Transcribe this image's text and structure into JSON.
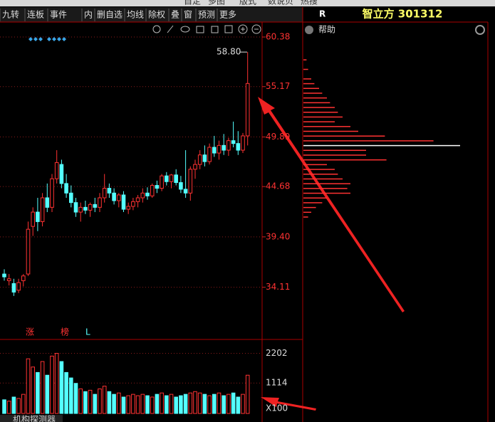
{
  "menu": [
    "自定",
    "多图",
    "版式",
    "数说贝",
    "热搜"
  ],
  "toolbar": [
    "九转",
    "连板",
    "事件",
    "内",
    "删自选",
    "均线",
    "除权",
    "叠",
    "窗",
    "预测",
    "更多"
  ],
  "panel": {
    "badge": "R",
    "title": "智立方 301312",
    "help": "帮助"
  },
  "tab": "机构探测器",
  "chart_data": {
    "type": "candlestick",
    "candles": [
      [
        35.5,
        36,
        34.8,
        35.2
      ],
      [
        34.8,
        35.5,
        34.3,
        35.0
      ],
      [
        34.5,
        35,
        33.2,
        33.6
      ],
      [
        33.8,
        35,
        33.5,
        34.6
      ],
      [
        34.8,
        35.5,
        34.2,
        35.3
      ],
      [
        35.5,
        41,
        35.3,
        40.2
      ],
      [
        40.5,
        42.5,
        39.5,
        42
      ],
      [
        42,
        43.5,
        40,
        41
      ],
      [
        41,
        44,
        40.5,
        43.5
      ],
      [
        43.5,
        45,
        42,
        42.5
      ],
      [
        42.5,
        46,
        42,
        45.5
      ],
      [
        45.5,
        48.5,
        45,
        47.2
      ],
      [
        47,
        47.5,
        44.5,
        45
      ],
      [
        45,
        46,
        43.5,
        44
      ],
      [
        44,
        44.8,
        42.5,
        43
      ],
      [
        43,
        43.5,
        41.5,
        42
      ],
      [
        42,
        43,
        41,
        42.5
      ],
      [
        42.5,
        43.2,
        41.8,
        42.2
      ],
      [
        42.2,
        43,
        41.5,
        42.8
      ],
      [
        42.8,
        43.5,
        42,
        42.5
      ],
      [
        42.5,
        44,
        42,
        43.5
      ],
      [
        43.5,
        46,
        43,
        44.5
      ],
      [
        44.5,
        45,
        43.5,
        44
      ],
      [
        44,
        44.5,
        42.8,
        43.2
      ],
      [
        43.2,
        44,
        42.5,
        43.8
      ],
      [
        43.8,
        44.2,
        42,
        42.3
      ],
      [
        42.3,
        43,
        41.8,
        42.6
      ],
      [
        42.6,
        43.5,
        42.2,
        43.1
      ],
      [
        43.1,
        43.8,
        42.5,
        43.5
      ],
      [
        43.5,
        44.5,
        43,
        44
      ],
      [
        44,
        44.6,
        43.3,
        43.7
      ],
      [
        43.7,
        45,
        43.5,
        44.8
      ],
      [
        44.8,
        45.3,
        44,
        44.5
      ],
      [
        44.5,
        46,
        44.2,
        45.8
      ],
      [
        45.8,
        46.2,
        44.8,
        45.2
      ],
      [
        45.2,
        46,
        44.5,
        45.9
      ],
      [
        45.9,
        46.5,
        44.8,
        45.1
      ],
      [
        45.1,
        45.8,
        44,
        44.4
      ],
      [
        44.4,
        48.5,
        43.5,
        44
      ],
      [
        44,
        46.8,
        43.2,
        46.5
      ],
      [
        46.5,
        47.5,
        45.5,
        47
      ],
      [
        47,
        48.5,
        46.5,
        48
      ],
      [
        48,
        49,
        46.8,
        47.3
      ],
      [
        47.3,
        49.2,
        47,
        48.8
      ],
      [
        48.8,
        50,
        47.8,
        48.2
      ],
      [
        48.2,
        49.5,
        47.5,
        49
      ],
      [
        49,
        50.2,
        48,
        48.5
      ],
      [
        48.5,
        49.8,
        47.9,
        49.5
      ],
      [
        49.5,
        51.5,
        48.8,
        49.2
      ],
      [
        49.2,
        50.5,
        48,
        48.5
      ],
      [
        48.5,
        50.3,
        48.2,
        50
      ],
      [
        50,
        58.8,
        49,
        55.5
      ]
    ],
    "ylim": [
      30.5,
      61.5
    ],
    "yticks": [
      60.38,
      55.17,
      49.89,
      44.68,
      {
        "value": 39.4,
        "label": "39.40"
      },
      34.11
    ],
    "annotation": "58.80",
    "markers": [
      "涨",
      "榜",
      "L"
    ],
    "up_color": "#ff3232",
    "down_color": "#54ffff",
    "volume": {
      "values": [
        500,
        450,
        600,
        550,
        700,
        2000,
        1700,
        1500,
        1900,
        1400,
        2100,
        2200,
        1900,
        1500,
        1300,
        1100,
        900,
        800,
        850,
        700,
        900,
        1000,
        800,
        700,
        750,
        600,
        650,
        700,
        650,
        700,
        650,
        600,
        700,
        750,
        650,
        700,
        600,
        650,
        700,
        750,
        800,
        750,
        700,
        650,
        700,
        750,
        650,
        700,
        750,
        600,
        700,
        1400
      ],
      "ylim": [
        0,
        2500
      ],
      "yticks": [
        2202,
        1114
      ],
      "unit": "X100"
    },
    "chips": {
      "prices": [
        58,
        57,
        56,
        55.5,
        55,
        54.5,
        54,
        53.5,
        53,
        52.5,
        52,
        51.5,
        51,
        50.5,
        50,
        49.5,
        49,
        48.5,
        48,
        47.5,
        47,
        46.5,
        46,
        45.5,
        45,
        44.5,
        44,
        43.5,
        43,
        42.5,
        42,
        41.5
      ],
      "values": [
        2,
        3,
        5,
        7,
        10,
        12,
        15,
        17,
        20,
        22,
        25,
        20,
        30,
        35,
        52,
        83,
        100,
        40,
        40,
        53,
        15,
        20,
        22,
        25,
        30,
        28,
        30,
        15,
        12,
        8,
        5,
        3
      ],
      "xlim": [
        0,
        100
      ],
      "color": "#ff3232",
      "peak_color": "#ffffff"
    }
  }
}
